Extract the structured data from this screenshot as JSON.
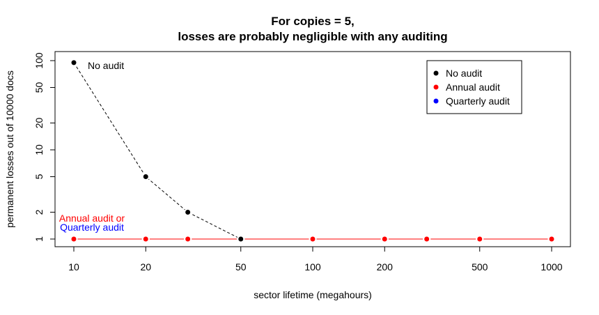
{
  "chart_data": {
    "type": "line",
    "title_line1": "For copies = 5,",
    "title_line2": "losses are probably negligible with any auditing",
    "xlabel": "sector lifetime (megahours)",
    "ylabel": "permanent losses out of 10000 docs",
    "x_scale": "log",
    "y_scale": "log",
    "xlim": [
      10,
      1000
    ],
    "ylim": [
      1,
      100
    ],
    "x_ticks": [
      10,
      20,
      50,
      100,
      200,
      500,
      1000
    ],
    "y_ticks": [
      1,
      2,
      5,
      10,
      20,
      50,
      100
    ],
    "grid": false,
    "legend_position": "top-right",
    "series": [
      {
        "name": "No audit",
        "color": "#000000",
        "line_style": "dashed",
        "x": [
          10,
          20,
          30,
          50
        ],
        "y": [
          95,
          5,
          2,
          1
        ]
      },
      {
        "name": "Annual audit",
        "color": "#ff0000",
        "line_style": "solid",
        "x": [
          10,
          20,
          30,
          50,
          100,
          200,
          300,
          500,
          1000
        ],
        "y": [
          1,
          1,
          1,
          1,
          1,
          1,
          1,
          1,
          1
        ]
      },
      {
        "name": "Quarterly audit",
        "color": "#0000ff",
        "line_style": "solid",
        "x": [
          10,
          20,
          30,
          50,
          100,
          200,
          300,
          500,
          1000
        ],
        "y": [
          1,
          1,
          1,
          1,
          1,
          1,
          1,
          1,
          1
        ]
      }
    ],
    "annotations": {
      "no_audit": "No audit",
      "annual_line": "Annual audit or",
      "quarterly_line": "Quarterly audit"
    }
  }
}
